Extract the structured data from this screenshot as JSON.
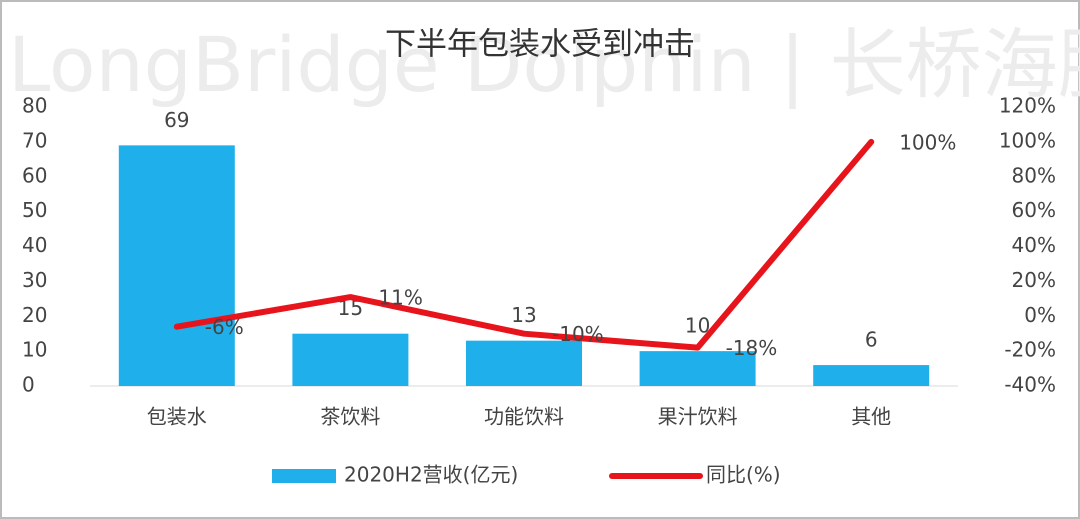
{
  "chart_data": {
    "type": "bar",
    "title": "下半年包装水受到冲击",
    "watermark": "LongBridge Dolphin | 长桥海豚投研",
    "categories": [
      "包装水",
      "茶饮料",
      "功能饮料",
      "果汁饮料",
      "其他"
    ],
    "series": [
      {
        "name": "2020H2营收(亿元)",
        "type": "bar",
        "color": "#1fb0ec",
        "values": [
          69,
          15,
          13,
          10,
          6
        ]
      },
      {
        "name": "同比(%)",
        "type": "line",
        "axis": "y2",
        "color": "#e8141c",
        "values": [
          -6,
          11,
          -10,
          -18,
          100
        ],
        "value_labels": [
          "-6%",
          "11%",
          "-10%",
          "-18%",
          "100%"
        ]
      }
    ],
    "ylim": [
      0,
      80
    ],
    "yticks": [
      0,
      10,
      20,
      30,
      40,
      50,
      60,
      70,
      80
    ],
    "y2lim": [
      -40,
      120
    ],
    "y2ticks": [
      {
        "value": -40,
        "label": "-40%"
      },
      {
        "value": -20,
        "label": "-20%"
      },
      {
        "value": 0,
        "label": "0%"
      },
      {
        "value": 20,
        "label": "20%"
      },
      {
        "value": 40,
        "label": "40%"
      },
      {
        "value": 60,
        "label": "60%"
      },
      {
        "value": 80,
        "label": "80%"
      },
      {
        "value": 100,
        "label": "100%"
      },
      {
        "value": 120,
        "label": "120%"
      }
    ],
    "legend": "bottom"
  }
}
